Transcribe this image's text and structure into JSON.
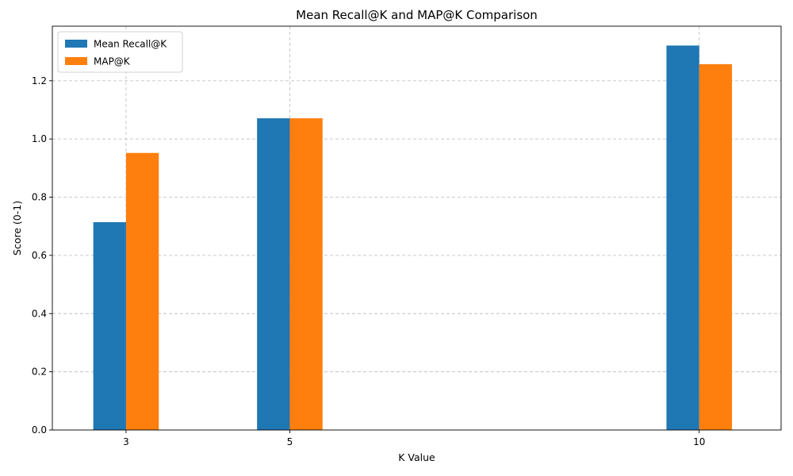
{
  "chart_data": {
    "type": "bar",
    "title": "Mean Recall@K and MAP@K Comparison",
    "xlabel": "K Value",
    "ylabel": "Score (0-1)",
    "x": [
      3,
      5,
      10
    ],
    "x_tick_labels": [
      "3",
      "5",
      "10"
    ],
    "series": [
      {
        "name": "Mean Recall@K",
        "color": "#1f77b4",
        "values": [
          0.714,
          1.071,
          1.321
        ]
      },
      {
        "name": "MAP@K",
        "color": "#ff7f0e",
        "values": [
          0.952,
          1.071,
          1.257
        ]
      }
    ],
    "xlim": [
      2.1,
      11.0
    ],
    "ylim": [
      0,
      1.3875
    ],
    "y_ticks": [
      0.0,
      0.2,
      0.4,
      0.6,
      0.8,
      1.0,
      1.2
    ],
    "y_tick_labels": [
      "0.0",
      "0.2",
      "0.4",
      "0.6",
      "0.8",
      "1.0",
      "1.2"
    ],
    "bar_width": 0.4,
    "grid": true,
    "legend_position": "top-left"
  }
}
